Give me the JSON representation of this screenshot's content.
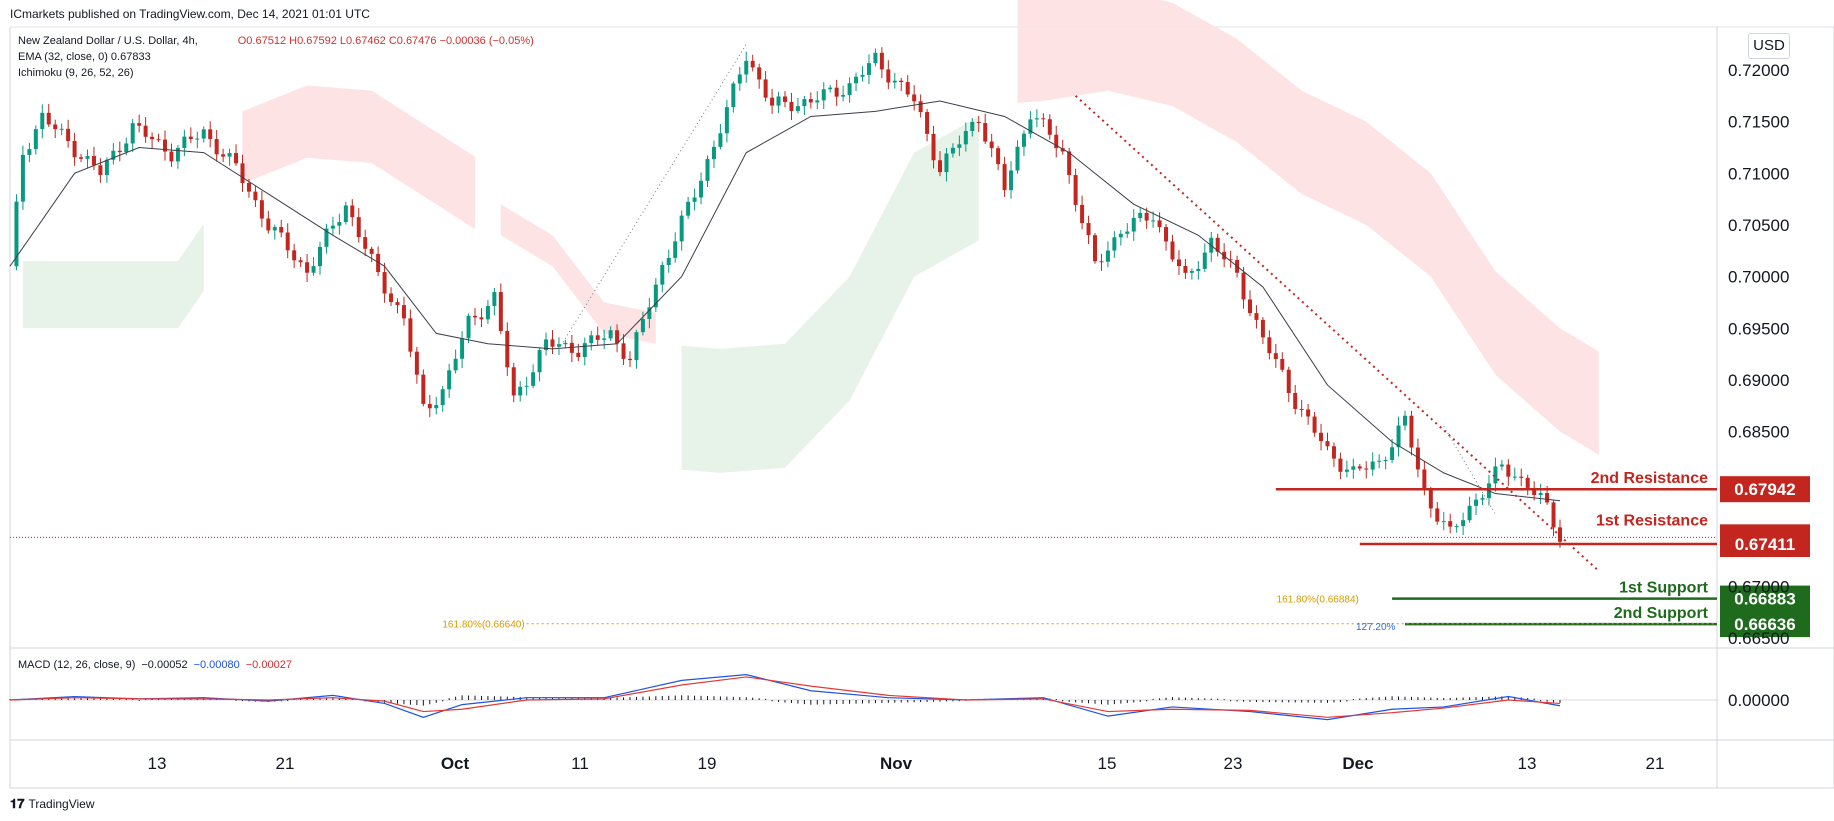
{
  "publisher": "ICmarkets published on TradingView.com, Dec 14, 2021 01:01 UTC",
  "legend": {
    "symbol": "New Zealand Dollar / U.S. Dollar, 4h,",
    "ohlc": "O0.67512 H0.67592 L0.67462 C0.67476 −0.00036 (−0.05%)",
    "ema": "EMA (32, close, 0)  0.67833",
    "ichimoku": "Ichimoku (9, 26, 52, 26)"
  },
  "macd_legend": {
    "label": "MACD (12, 26, close, 9)",
    "v1": "−0.00052",
    "v2": "−0.00080",
    "v3": "−0.00027"
  },
  "currency": "USD",
  "footer": {
    "logo": "𝟏𝟕",
    "text": "TradingView"
  },
  "colors": {
    "up": "#089981",
    "down": "#c2261f",
    "ema": "#3b3f4a",
    "cloud_bull": "#e4f2e6",
    "cloud_bear": "#fde0e0",
    "resistance": "#c2261f",
    "support": "#1e6b1e",
    "fib": "#d99a00",
    "fib2": "#2a6fdb"
  },
  "chart_data": {
    "type": "line",
    "title": "",
    "y_axis_ticks": [
      "0.72000",
      "0.71500",
      "0.71000",
      "0.70500",
      "0.70000",
      "0.69500",
      "0.69000",
      "0.68500",
      "0.67000",
      "0.66500"
    ],
    "x_axis_ticks": [
      "13",
      "21",
      "Oct",
      "11",
      "19",
      "Nov",
      "15",
      "23",
      "Dec",
      "13",
      "21"
    ],
    "ylim": [
      0.6637,
      0.723
    ],
    "price_path": [
      {
        "x": 0,
        "y": 0.701
      },
      {
        "x": 2,
        "y": 0.712
      },
      {
        "x": 5,
        "y": 0.7155
      },
      {
        "x": 9,
        "y": 0.713
      },
      {
        "x": 14,
        "y": 0.71
      },
      {
        "x": 19,
        "y": 0.7145
      },
      {
        "x": 25,
        "y": 0.712
      },
      {
        "x": 30,
        "y": 0.714
      },
      {
        "x": 35,
        "y": 0.7105
      },
      {
        "x": 40,
        "y": 0.705
      },
      {
        "x": 46,
        "y": 0.7005
      },
      {
        "x": 52,
        "y": 0.707
      },
      {
        "x": 57,
        "y": 0.7
      },
      {
        "x": 61,
        "y": 0.696
      },
      {
        "x": 64,
        "y": 0.687
      },
      {
        "x": 67,
        "y": 0.689
      },
      {
        "x": 71,
        "y": 0.6955
      },
      {
        "x": 75,
        "y": 0.698
      },
      {
        "x": 78,
        "y": 0.688
      },
      {
        "x": 83,
        "y": 0.6935
      },
      {
        "x": 88,
        "y": 0.693
      },
      {
        "x": 93,
        "y": 0.6945
      },
      {
        "x": 96,
        "y": 0.692
      },
      {
        "x": 101,
        "y": 0.701
      },
      {
        "x": 106,
        "y": 0.708
      },
      {
        "x": 111,
        "y": 0.716
      },
      {
        "x": 114,
        "y": 0.7215
      },
      {
        "x": 118,
        "y": 0.7165
      },
      {
        "x": 124,
        "y": 0.717
      },
      {
        "x": 130,
        "y": 0.7185
      },
      {
        "x": 134,
        "y": 0.721
      },
      {
        "x": 140,
        "y": 0.717
      },
      {
        "x": 144,
        "y": 0.7105
      },
      {
        "x": 150,
        "y": 0.7155
      },
      {
        "x": 154,
        "y": 0.7085
      },
      {
        "x": 158,
        "y": 0.716
      },
      {
        "x": 163,
        "y": 0.712
      },
      {
        "x": 168,
        "y": 0.701
      },
      {
        "x": 172,
        "y": 0.7045
      },
      {
        "x": 177,
        "y": 0.706
      },
      {
        "x": 182,
        "y": 0.6995
      },
      {
        "x": 186,
        "y": 0.7035
      },
      {
        "x": 190,
        "y": 0.7
      },
      {
        "x": 194,
        "y": 0.694
      },
      {
        "x": 199,
        "y": 0.688
      },
      {
        "x": 204,
        "y": 0.683
      },
      {
        "x": 208,
        "y": 0.681
      },
      {
        "x": 212,
        "y": 0.682
      },
      {
        "x": 216,
        "y": 0.686
      },
      {
        "x": 219,
        "y": 0.679
      },
      {
        "x": 223,
        "y": 0.675
      },
      {
        "x": 227,
        "y": 0.6785
      },
      {
        "x": 231,
        "y": 0.6815
      },
      {
        "x": 235,
        "y": 0.68
      },
      {
        "x": 238,
        "y": 0.6775
      },
      {
        "x": 240,
        "y": 0.6748
      }
    ],
    "ema_path": [
      {
        "x": 0,
        "y": 0.701
      },
      {
        "x": 10,
        "y": 0.71
      },
      {
        "x": 20,
        "y": 0.7125
      },
      {
        "x": 30,
        "y": 0.712
      },
      {
        "x": 40,
        "y": 0.708
      },
      {
        "x": 50,
        "y": 0.704
      },
      {
        "x": 58,
        "y": 0.701
      },
      {
        "x": 66,
        "y": 0.6945
      },
      {
        "x": 74,
        "y": 0.6935
      },
      {
        "x": 84,
        "y": 0.693
      },
      {
        "x": 94,
        "y": 0.6935
      },
      {
        "x": 104,
        "y": 0.7
      },
      {
        "x": 114,
        "y": 0.712
      },
      {
        "x": 124,
        "y": 0.7155
      },
      {
        "x": 134,
        "y": 0.716
      },
      {
        "x": 144,
        "y": 0.717
      },
      {
        "x": 154,
        "y": 0.7155
      },
      {
        "x": 164,
        "y": 0.712
      },
      {
        "x": 174,
        "y": 0.707
      },
      {
        "x": 184,
        "y": 0.704
      },
      {
        "x": 194,
        "y": 0.699
      },
      {
        "x": 204,
        "y": 0.6895
      },
      {
        "x": 214,
        "y": 0.684
      },
      {
        "x": 222,
        "y": 0.681
      },
      {
        "x": 230,
        "y": 0.679
      },
      {
        "x": 240,
        "y": 0.6783
      }
    ],
    "levels": [
      {
        "label": "2nd Resistance",
        "value": "0.67942",
        "kind": "resistance"
      },
      {
        "label": "1st Resistance",
        "value": "0.67411",
        "kind": "resistance"
      },
      {
        "label": "",
        "value": "0.67476",
        "kind": "price"
      },
      {
        "label": "1st Support",
        "value": "0.66883",
        "kind": "support"
      },
      {
        "label": "2nd Support",
        "value": "0.66636",
        "kind": "support"
      }
    ],
    "fib_labels": [
      "161.80%(0.66884)",
      "161.80%(0.66640)",
      "127.20%"
    ],
    "macd": {
      "zero_tick": "0.00000",
      "macd": [
        {
          "x": 0,
          "v": 0.0
        },
        {
          "x": 10,
          "v": 0.0003
        },
        {
          "x": 20,
          "v": 0.0001
        },
        {
          "x": 30,
          "v": 0.0002
        },
        {
          "x": 40,
          "v": -0.0001
        },
        {
          "x": 50,
          "v": 0.0004
        },
        {
          "x": 58,
          "v": -0.0003
        },
        {
          "x": 64,
          "v": -0.0015
        },
        {
          "x": 70,
          "v": -0.0004
        },
        {
          "x": 80,
          "v": 0.0002
        },
        {
          "x": 92,
          "v": 0.0002
        },
        {
          "x": 104,
          "v": 0.0017
        },
        {
          "x": 114,
          "v": 0.0022
        },
        {
          "x": 124,
          "v": 0.0008
        },
        {
          "x": 136,
          "v": 0.0002
        },
        {
          "x": 148,
          "v": 0.0
        },
        {
          "x": 160,
          "v": 0.0002
        },
        {
          "x": 170,
          "v": -0.0014
        },
        {
          "x": 180,
          "v": -0.0006
        },
        {
          "x": 192,
          "v": -0.001
        },
        {
          "x": 204,
          "v": -0.0017
        },
        {
          "x": 214,
          "v": -0.0008
        },
        {
          "x": 222,
          "v": -0.0006
        },
        {
          "x": 232,
          "v": 0.0003
        },
        {
          "x": 240,
          "v": -0.0005
        }
      ],
      "signal": [
        {
          "x": 0,
          "v": 0.0
        },
        {
          "x": 10,
          "v": 0.0002
        },
        {
          "x": 20,
          "v": 0.0001
        },
        {
          "x": 30,
          "v": 0.0001
        },
        {
          "x": 40,
          "v": 0.0
        },
        {
          "x": 50,
          "v": 0.0002
        },
        {
          "x": 58,
          "v": -0.0001
        },
        {
          "x": 64,
          "v": -0.001
        },
        {
          "x": 70,
          "v": -0.0008
        },
        {
          "x": 80,
          "v": 0.0
        },
        {
          "x": 92,
          "v": 0.0001
        },
        {
          "x": 104,
          "v": 0.0013
        },
        {
          "x": 114,
          "v": 0.002
        },
        {
          "x": 124,
          "v": 0.0012
        },
        {
          "x": 136,
          "v": 0.0004
        },
        {
          "x": 148,
          "v": 0.0
        },
        {
          "x": 160,
          "v": 0.0001
        },
        {
          "x": 170,
          "v": -0.001
        },
        {
          "x": 180,
          "v": -0.0008
        },
        {
          "x": 192,
          "v": -0.0009
        },
        {
          "x": 204,
          "v": -0.0015
        },
        {
          "x": 214,
          "v": -0.0011
        },
        {
          "x": 222,
          "v": -0.0007
        },
        {
          "x": 232,
          "v": 0.0
        },
        {
          "x": 240,
          "v": -0.0003
        }
      ],
      "vlim": [
        -0.002,
        0.0026
      ]
    }
  }
}
